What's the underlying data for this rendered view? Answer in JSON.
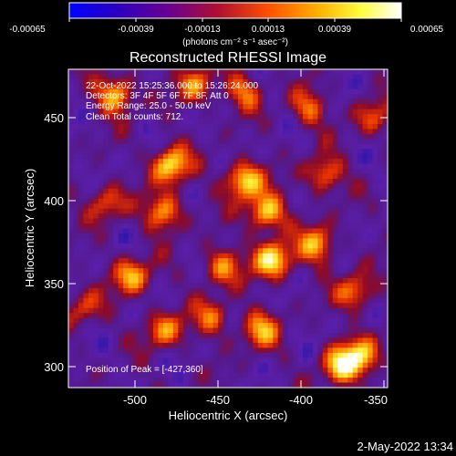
{
  "title": "Reconstructed RHESSI Image",
  "colorbar": {
    "tick_labels": [
      "-0.00065",
      "-0.00039",
      "-0.00013",
      "0.00013",
      "0.00039",
      "0.00065"
    ],
    "units_label": "(photons cm⁻² s⁻¹ asec⁻²)",
    "range": [
      -0.00065,
      0.00065
    ],
    "colors": [
      "#0000ff",
      "#2a00c0",
      "#6a0090",
      "#b01030",
      "#ff5000",
      "#ffb000",
      "#ffff40",
      "#ffffff"
    ]
  },
  "annotations": {
    "line1": "22-Oct-2022 15:25:36.000 to 15:26:24.000",
    "line2": "Detectors: 3F 4F 5F 6F 7F 8F, Att 0",
    "line3": "Energy Range: 25.0 - 50.0 keV",
    "line4": "Clean    Total counts: 712.",
    "peak": "Position of Peak = [-427,360]"
  },
  "x_axis": {
    "label": "Heliocentric X (arcsec)",
    "range": [
      -540,
      -348
    ],
    "tick_labels": [
      "-500",
      "-450",
      "-400",
      "-350"
    ],
    "tick_values": [
      -500,
      -450,
      -400,
      -350
    ]
  },
  "y_axis": {
    "label": "Heliocentric Y (arcsec)",
    "range": [
      288,
      470
    ],
    "tick_labels": [
      "300",
      "350",
      "400",
      "450"
    ],
    "tick_values": [
      300,
      350,
      400,
      450
    ]
  },
  "footer": {
    "timestamp": "2-May-2022 13:34"
  }
}
